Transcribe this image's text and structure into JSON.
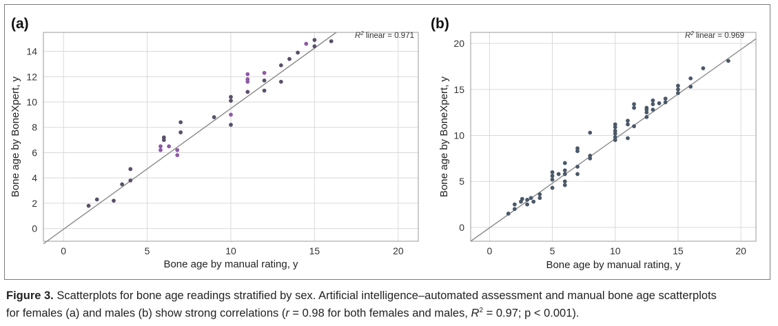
{
  "chart_data": [
    {
      "type": "scatter",
      "panel_label": "(a)",
      "xlabel": "Bone age by manual rating, y",
      "ylabel": "Bone age by BoneXpert, y",
      "r2_label": "R² linear = 0.971",
      "xlim": [
        -1.2,
        21.2
      ],
      "ylim": [
        -1.0,
        15.5
      ],
      "xticks": [
        0,
        5,
        10,
        15,
        20
      ],
      "yticks": [
        0,
        2,
        4,
        6,
        8,
        10,
        12,
        14
      ],
      "grid": true,
      "fit_line": [
        [
          -1.2,
          -1.2
        ],
        [
          16.3,
          15.5
        ]
      ],
      "series": [
        {
          "color": "#5a4f6a",
          "points": [
            [
              1.5,
              1.8
            ],
            [
              2.0,
              2.3
            ],
            [
              3.0,
              2.2
            ],
            [
              3.5,
              3.5
            ],
            [
              4.0,
              4.7
            ],
            [
              4.0,
              3.8
            ],
            [
              6.0,
              7.2
            ],
            [
              6.0,
              7.0
            ],
            [
              7.0,
              8.4
            ],
            [
              7.0,
              7.6
            ],
            [
              9.0,
              8.8
            ],
            [
              10.0,
              10.4
            ],
            [
              10.0,
              10.1
            ],
            [
              10.0,
              8.2
            ],
            [
              11.0,
              10.8
            ],
            [
              12.0,
              11.7
            ],
            [
              12.0,
              10.9
            ],
            [
              13.0,
              12.9
            ],
            [
              13.0,
              11.6
            ],
            [
              13.5,
              13.4
            ],
            [
              14.0,
              13.9
            ],
            [
              15.0,
              14.9
            ],
            [
              15.0,
              14.4
            ],
            [
              16.0,
              14.8
            ]
          ]
        },
        {
          "color": "#8e5aa6",
          "points": [
            [
              5.8,
              6.5
            ],
            [
              5.8,
              6.2
            ],
            [
              6.3,
              6.5
            ],
            [
              6.8,
              6.2
            ],
            [
              6.8,
              5.8
            ],
            [
              10.0,
              9.0
            ],
            [
              11.0,
              12.2
            ],
            [
              11.0,
              11.8
            ],
            [
              11.0,
              11.6
            ],
            [
              12.0,
              12.3
            ],
            [
              14.5,
              14.6
            ]
          ]
        }
      ]
    },
    {
      "type": "scatter",
      "panel_label": "(b)",
      "xlabel": "Bone age by manual rating, y",
      "ylabel": "Bone age by BoneXpert, y",
      "r2_label": "R² linear = 0.969",
      "xlim": [
        -1.5,
        21.2
      ],
      "ylim": [
        -1.5,
        21.2
      ],
      "xticks": [
        0,
        5,
        10,
        15,
        20
      ],
      "yticks": [
        0,
        5,
        10,
        15,
        20
      ],
      "grid": true,
      "fit_line": [
        [
          -1.5,
          -1.5
        ],
        [
          21.2,
          20.5
        ]
      ],
      "series": [
        {
          "color": "#4a5868",
          "points": [
            [
              1.5,
              1.5
            ],
            [
              2,
              2
            ],
            [
              2,
              2.5
            ],
            [
              2.5,
              2.8
            ],
            [
              2.6,
              3.1
            ],
            [
              3,
              2.5
            ],
            [
              3,
              3
            ],
            [
              3.3,
              3.2
            ],
            [
              3.5,
              2.8
            ],
            [
              4,
              3.2
            ],
            [
              4,
              3.6
            ],
            [
              5,
              4.3
            ],
            [
              5,
              5.2
            ],
            [
              5,
              5.6
            ],
            [
              5,
              6
            ],
            [
              5.5,
              5.8
            ],
            [
              6,
              4.6
            ],
            [
              6,
              5
            ],
            [
              6,
              5.8
            ],
            [
              6,
              6.2
            ],
            [
              6,
              7
            ],
            [
              7,
              5.8
            ],
            [
              7,
              6.6
            ],
            [
              7,
              8.3
            ],
            [
              7,
              8.6
            ],
            [
              8,
              7.5
            ],
            [
              8,
              7.8
            ],
            [
              8,
              10.3
            ],
            [
              10,
              9.5
            ],
            [
              10,
              9.8
            ],
            [
              10,
              10.2
            ],
            [
              10,
              10.5
            ],
            [
              10,
              10.9
            ],
            [
              10,
              11.2
            ],
            [
              11,
              9.7
            ],
            [
              11,
              11.2
            ],
            [
              11,
              11.6
            ],
            [
              11.5,
              11
            ],
            [
              11.5,
              13
            ],
            [
              11.5,
              13.4
            ],
            [
              12.5,
              12
            ],
            [
              12.5,
              12.5
            ],
            [
              12.5,
              12.8
            ],
            [
              12.5,
              13
            ],
            [
              13,
              12.8
            ],
            [
              13,
              13.4
            ],
            [
              13,
              13.8
            ],
            [
              13.5,
              13.5
            ],
            [
              14,
              13.6
            ],
            [
              14,
              14
            ],
            [
              15,
              14.6
            ],
            [
              15,
              15
            ],
            [
              15,
              15.4
            ],
            [
              16,
              15.3
            ],
            [
              16,
              16.2
            ],
            [
              17,
              17.3
            ],
            [
              19,
              18.1
            ]
          ]
        }
      ]
    }
  ],
  "caption": {
    "fig_label": "Figure 3.",
    "line1": " Scatterplots for bone age readings stratified by sex. Artificial intelligence–automated assessment and manual bone age scatterplots",
    "line2_pre": "for females (a) and males (b) show strong correlations (",
    "r_symbol": "r",
    "line2_mid": " = 0.98 for both females and males, ",
    "r2_symbol": "R",
    "r2_sup": "2",
    "line2_post": " = 0.97; p < 0.001)."
  }
}
